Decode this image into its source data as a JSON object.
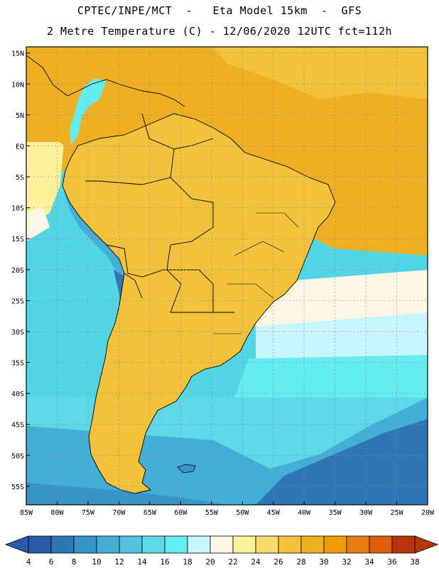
{
  "header": {
    "line1": "CPTEC/INPE/MCT  -   Eta Model 15km  -  GFS",
    "line2": "2 Metre Temperature (C) - 12/06/2020 12UTC fct=112h"
  },
  "map": {
    "lat_ticks": [
      "15N",
      "10N",
      "5N",
      "EQ",
      "5S",
      "10S",
      "15S",
      "20S",
      "25S",
      "30S",
      "35S",
      "40S",
      "45S",
      "50S",
      "55S"
    ],
    "lon_ticks": [
      "85W",
      "80W",
      "75W",
      "70W",
      "65W",
      "60W",
      "55W",
      "50W",
      "45W",
      "40W",
      "35W",
      "30W",
      "25W",
      "20W"
    ],
    "lon_range": [
      -85,
      -20
    ],
    "lat_range": [
      -58,
      16
    ],
    "ocean_base_color": "#52d6e6",
    "land_base_color": "#f2c23c"
  },
  "colorbar": {
    "labels": [
      "4",
      "6",
      "8",
      "10",
      "12",
      "14",
      "16",
      "18",
      "20",
      "22",
      "24",
      "26",
      "28",
      "30",
      "32",
      "34",
      "36",
      "38"
    ],
    "low_color": "#2a5aa8",
    "high_color": "#b8340c",
    "colors": [
      "#2a5aa8",
      "#2e77b4",
      "#3694c6",
      "#44aed6",
      "#52c2de",
      "#5ed8e6",
      "#64ecf0",
      "#c8f4fb",
      "#fdf6e4",
      "#fcf09c",
      "#f6da6a",
      "#f2c23c",
      "#eeb022",
      "#f09c06",
      "#e87c12",
      "#de5e0a",
      "#b8340c"
    ]
  }
}
